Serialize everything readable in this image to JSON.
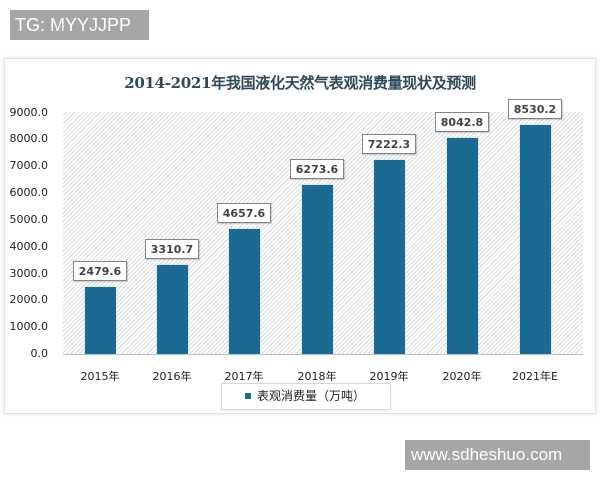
{
  "watermarks": {
    "top": "TG: MYYJJPP",
    "bottom": "www.sdheshuo.com"
  },
  "chart_data": {
    "type": "bar",
    "title": "2014-2021年我国液化天然气表观消费量现状及预测",
    "categories": [
      "2015年",
      "2016年",
      "2017年",
      "2018年",
      "2019年",
      "2020年",
      "2021年E"
    ],
    "series": [
      {
        "name": "表观消费量（万吨）",
        "values": [
          2479.6,
          3310.7,
          4657.6,
          6273.6,
          7222.3,
          8042.8,
          8530.2
        ],
        "color": "#1b6a93"
      }
    ],
    "value_labels": [
      "2479.6",
      "3310.7",
      "4657.6",
      "6273.6",
      "7222.3",
      "8042.8",
      "8530.2"
    ],
    "xlabel": "",
    "ylabel": "",
    "ylim": [
      0,
      9000
    ],
    "yticks": [
      "0.0",
      "1000.0",
      "2000.0",
      "3000.0",
      "4000.0",
      "5000.0",
      "6000.0",
      "7000.0",
      "8000.0",
      "9000.0"
    ],
    "grid": false,
    "legend_position": "bottom",
    "legend": [
      "表观消费量（万吨）"
    ]
  }
}
